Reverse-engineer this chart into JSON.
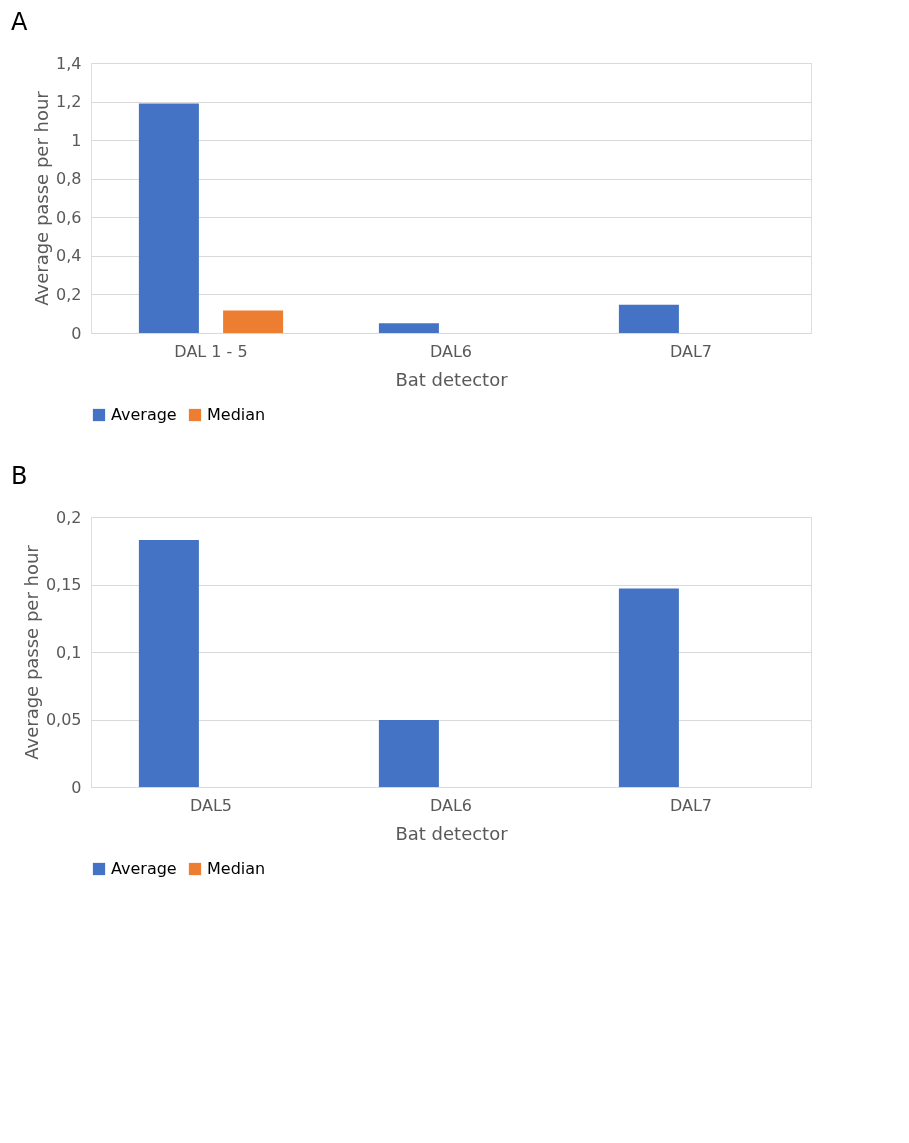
{
  "chart_data": [
    {
      "type": "bar",
      "title": "A",
      "xlabel": "Bat detector",
      "ylabel": "Average passe per hour",
      "categories": [
        "DAL 1 - 5",
        "DAL6",
        "DAL7"
      ],
      "series": [
        {
          "name": "Average",
          "color": "#4472c4",
          "values": [
            1.19,
            0.05,
            0.146
          ]
        },
        {
          "name": "Median",
          "color": "#ed7d31",
          "values": [
            0.117,
            0,
            0
          ]
        }
      ],
      "ylim": [
        0,
        1.4
      ],
      "yticks": [
        0,
        {
          "value": 0.2,
          "label": "0,2"
        },
        {
          "value": 0.4,
          "label": "0,4"
        },
        {
          "value": 0.6,
          "label": "0,6"
        },
        {
          "value": 0.8,
          "label": "0,8"
        },
        1,
        {
          "value": 1.2,
          "label": "1,2"
        },
        {
          "value": 1.4,
          "label": "1,4"
        }
      ],
      "grid": "y",
      "legend": "bottom"
    },
    {
      "type": "bar",
      "title": "B",
      "xlabel": "Bat detector",
      "ylabel": "Average passe per hour",
      "categories": [
        "DAL5",
        "DAL6",
        "DAL7"
      ],
      "series": [
        {
          "name": "Average",
          "color": "#4472c4",
          "values": [
            0.183,
            0.0497,
            0.147
          ]
        },
        {
          "name": "Median",
          "color": "#ed7d31",
          "values": [
            0,
            0,
            0
          ]
        }
      ],
      "ylim": [
        0,
        0.2
      ],
      "yticks": [
        0,
        {
          "value": 0.05,
          "label": "0,05"
        },
        {
          "value": 0.1,
          "label": "0,1"
        },
        {
          "value": 0.15,
          "label": "0,15"
        },
        {
          "value": 0.2,
          "label": "0,2"
        }
      ],
      "grid": "y",
      "legend": "bottom"
    }
  ]
}
